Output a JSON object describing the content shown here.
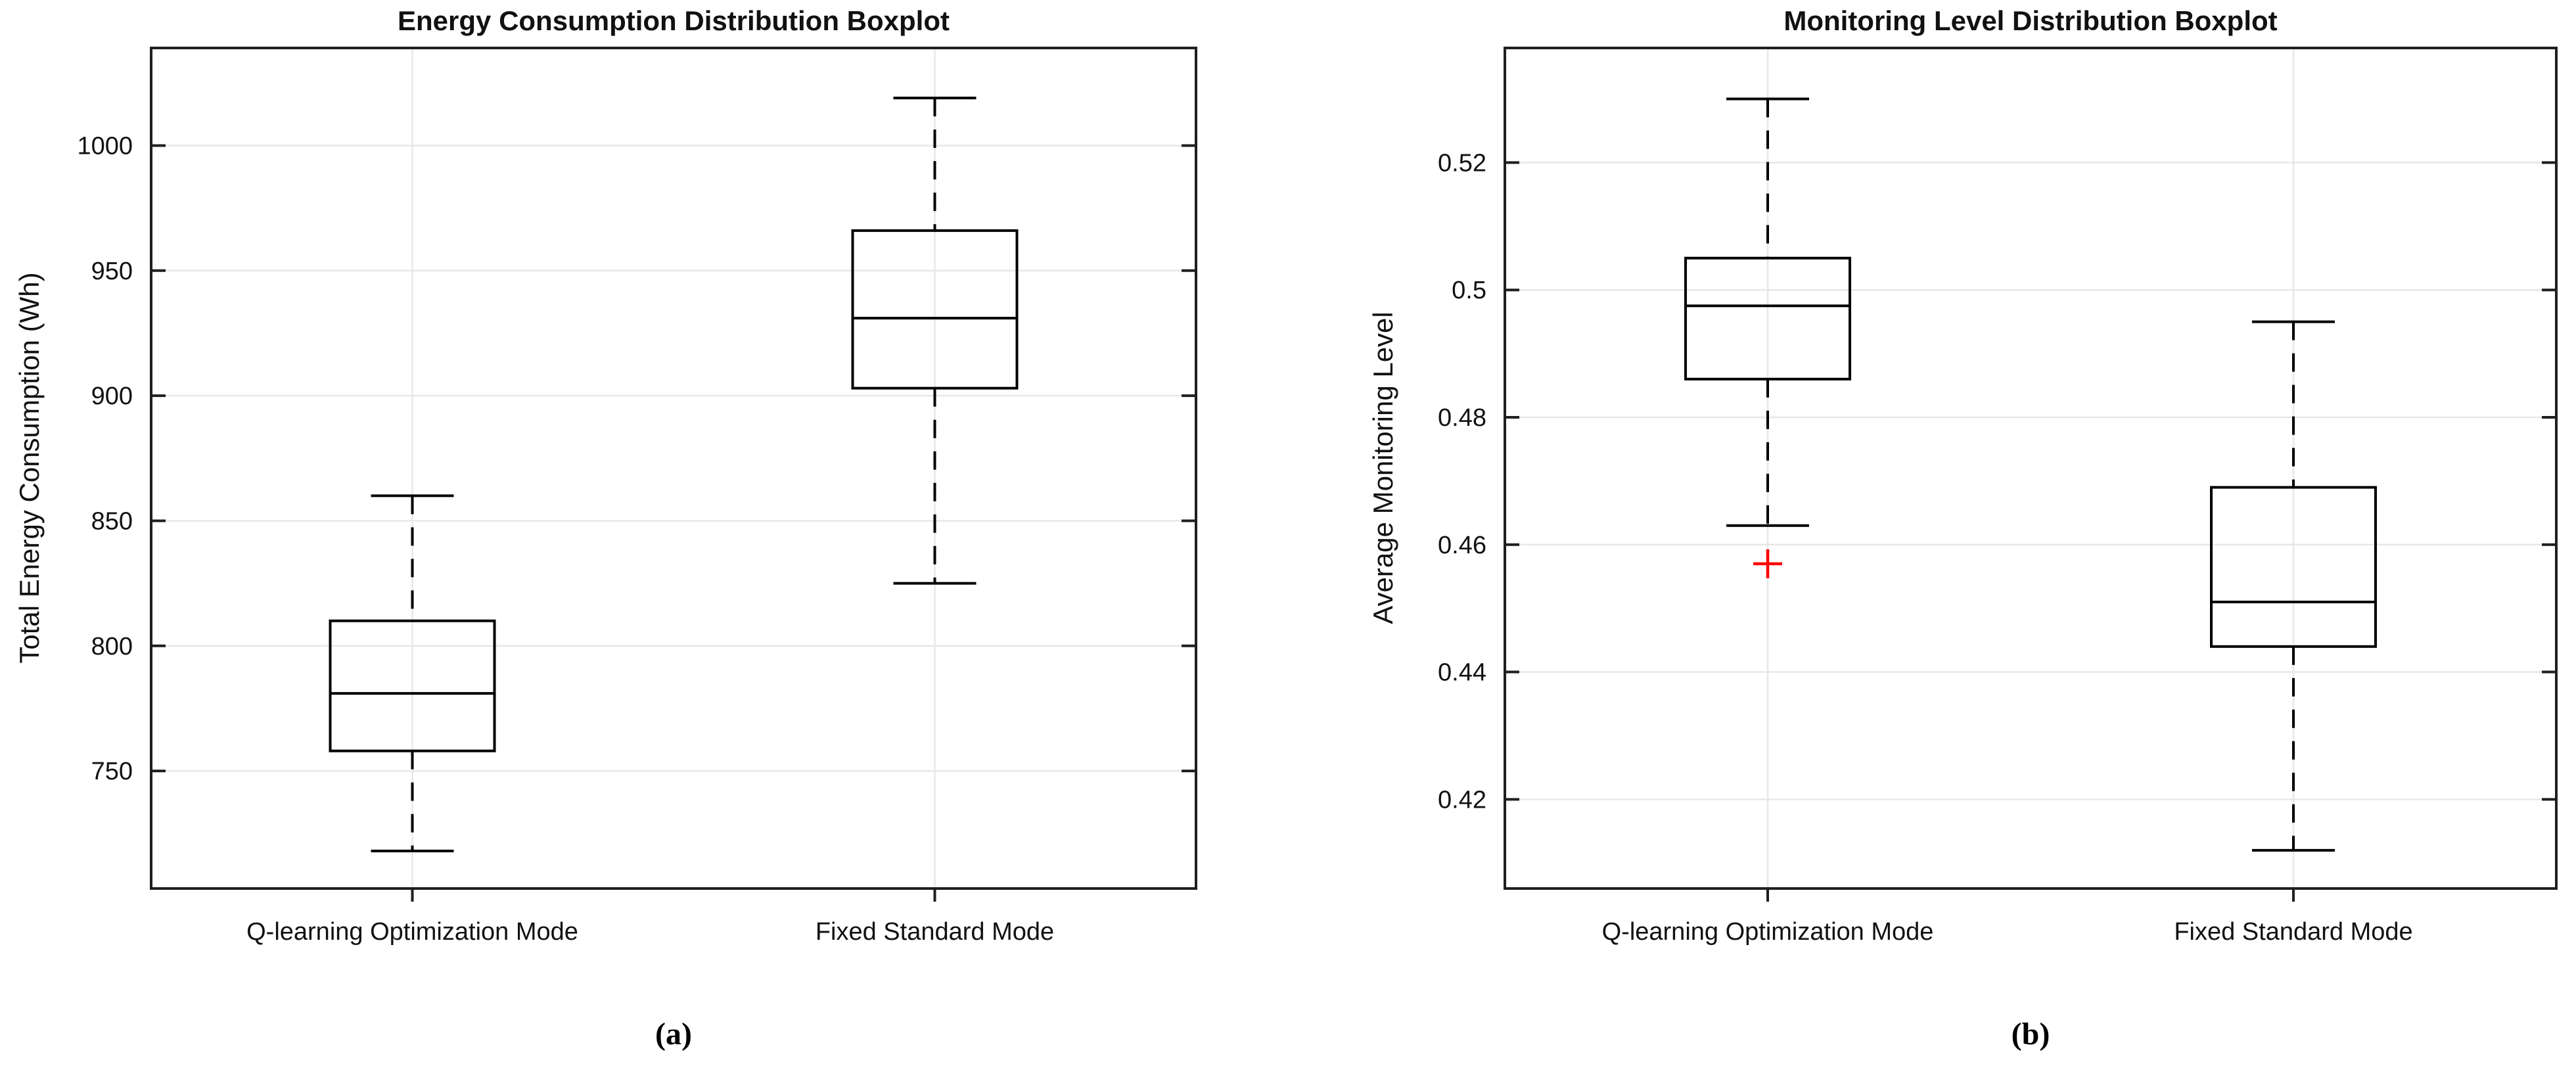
{
  "figure": {
    "background": "#ffffff"
  },
  "chart_data": [
    {
      "type": "boxplot",
      "title": "Energy Consumption Distribution Boxplot",
      "ylabel": "Total Energy Consumption (Wh)",
      "xlabel": "",
      "caption": "(a)",
      "categories": [
        "Q-learning Optimization Mode",
        "Fixed Standard Mode"
      ],
      "yticks": [
        750,
        800,
        850,
        900,
        950,
        1000
      ],
      "ytick_labels": [
        "750",
        "800",
        "850",
        "900",
        "950",
        "1000"
      ],
      "ylim": [
        703,
        1039
      ],
      "grid": true,
      "legend": "none",
      "series": [
        {
          "name": "Q-learning Optimization Mode",
          "whisker_low": 718,
          "q1": 758,
          "median": 781,
          "q3": 810,
          "whisker_high": 860,
          "outliers": []
        },
        {
          "name": "Fixed Standard Mode",
          "whisker_low": 825,
          "q1": 903,
          "median": 931,
          "q3": 966,
          "whisker_high": 1019,
          "outliers": []
        }
      ],
      "colors": {
        "box": "#000000",
        "median": "#000000",
        "whisker": "#000000",
        "cap": "#000000",
        "outlier": "#ff0000",
        "grid": "#e7e7e7",
        "axis": "#1f1f1f",
        "text": "#111111"
      }
    },
    {
      "type": "boxplot",
      "title": "Monitoring Level Distribution Boxplot",
      "ylabel": "Average Monitoring Level",
      "xlabel": "",
      "caption": "(b)",
      "categories": [
        "Q-learning Optimization Mode",
        "Fixed Standard Mode"
      ],
      "yticks": [
        0.42,
        0.44,
        0.46,
        0.48,
        0.5,
        0.52
      ],
      "ytick_labels": [
        "0.42",
        "0.44",
        "0.46",
        "0.48",
        "0.5",
        "0.52"
      ],
      "ylim": [
        0.406,
        0.538
      ],
      "grid": true,
      "legend": "none",
      "series": [
        {
          "name": "Q-learning Optimization Mode",
          "whisker_low": 0.463,
          "q1": 0.486,
          "median": 0.4975,
          "q3": 0.505,
          "whisker_high": 0.53,
          "outliers": [
            0.457
          ]
        },
        {
          "name": "Fixed Standard Mode",
          "whisker_low": 0.412,
          "q1": 0.444,
          "median": 0.451,
          "q3": 0.469,
          "whisker_high": 0.495,
          "outliers": []
        }
      ],
      "colors": {
        "box": "#000000",
        "median": "#000000",
        "whisker": "#000000",
        "cap": "#000000",
        "outlier": "#ff0000",
        "grid": "#e7e7e7",
        "axis": "#1f1f1f",
        "text": "#111111"
      }
    }
  ]
}
